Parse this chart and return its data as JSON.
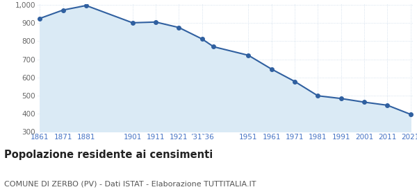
{
  "years": [
    1861,
    1871,
    1881,
    1901,
    1911,
    1921,
    1931,
    1936,
    1951,
    1961,
    1971,
    1981,
    1991,
    2001,
    2011,
    2021
  ],
  "population": [
    925,
    971,
    996,
    901,
    905,
    875,
    812,
    769,
    722,
    646,
    578,
    499,
    484,
    464,
    447,
    397
  ],
  "ylim": [
    300,
    1000
  ],
  "ytick_values": [
    300,
    400,
    500,
    600,
    700,
    800,
    900,
    1000
  ],
  "ytick_labels": [
    "300",
    "400",
    "500",
    "600",
    "700",
    "800",
    "900",
    "1,000"
  ],
  "x_tick_positions": [
    1861,
    1871,
    1881,
    1901,
    1911,
    1921,
    1931,
    1951,
    1961,
    1971,
    1981,
    1991,
    2001,
    2011,
    2021
  ],
  "x_tick_labels": [
    "1861",
    "1871",
    "1881",
    "1901",
    "1911",
    "1921",
    "’31‶36",
    "1951",
    "1961",
    "1971",
    "1981",
    "1991",
    "2001",
    "2011",
    "2021"
  ],
  "line_color": "#3060a0",
  "fill_color": "#daeaf5",
  "marker_color": "#3060a0",
  "grid_color": "#c8d8e8",
  "background_color": "#ffffff",
  "title": "Popolazione residente ai censimenti",
  "subtitle": "COMUNE DI ZERBO (PV) - Dati ISTAT - Elaborazione TUTTITALIA.IT",
  "title_fontsize": 10.5,
  "subtitle_fontsize": 8,
  "tick_label_color": "#4472c4",
  "ytick_label_color": "#666666",
  "tick_fontsize": 7.5
}
